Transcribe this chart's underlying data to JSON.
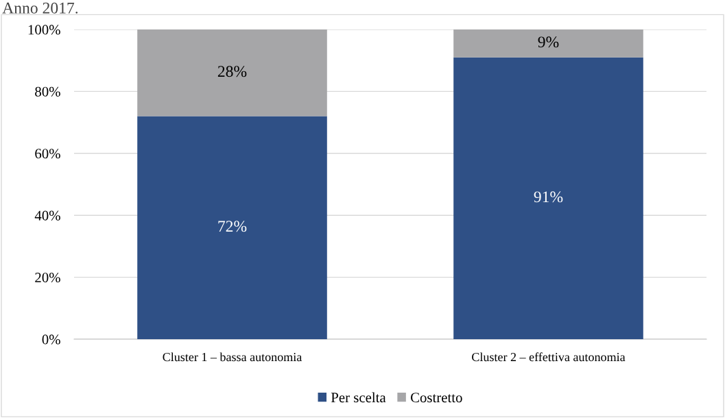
{
  "chart_data": {
    "type": "bar",
    "title": "Anno 2017.",
    "categories": [
      "Cluster 1 – bassa autonomia",
      "Cluster 2 – effettiva autonomia"
    ],
    "series": [
      {
        "name": "Per scelta",
        "color": "#2f5086",
        "values": [
          72,
          91
        ],
        "value_labels": [
          "72%",
          "91%"
        ]
      },
      {
        "name": "Costretto",
        "color": "#a6a6a8",
        "values": [
          28,
          9
        ],
        "value_labels": [
          "28%",
          "9%"
        ]
      }
    ],
    "stacked": true,
    "ylim": [
      0,
      100
    ],
    "yticks": [
      {
        "value": 0,
        "label": "0%"
      },
      {
        "value": 20,
        "label": "20%"
      },
      {
        "value": 40,
        "label": "40%"
      },
      {
        "value": 60,
        "label": "60%"
      },
      {
        "value": 80,
        "label": "80%"
      },
      {
        "value": 100,
        "label": "100%"
      }
    ],
    "grid": "y",
    "legend": "bottom"
  }
}
